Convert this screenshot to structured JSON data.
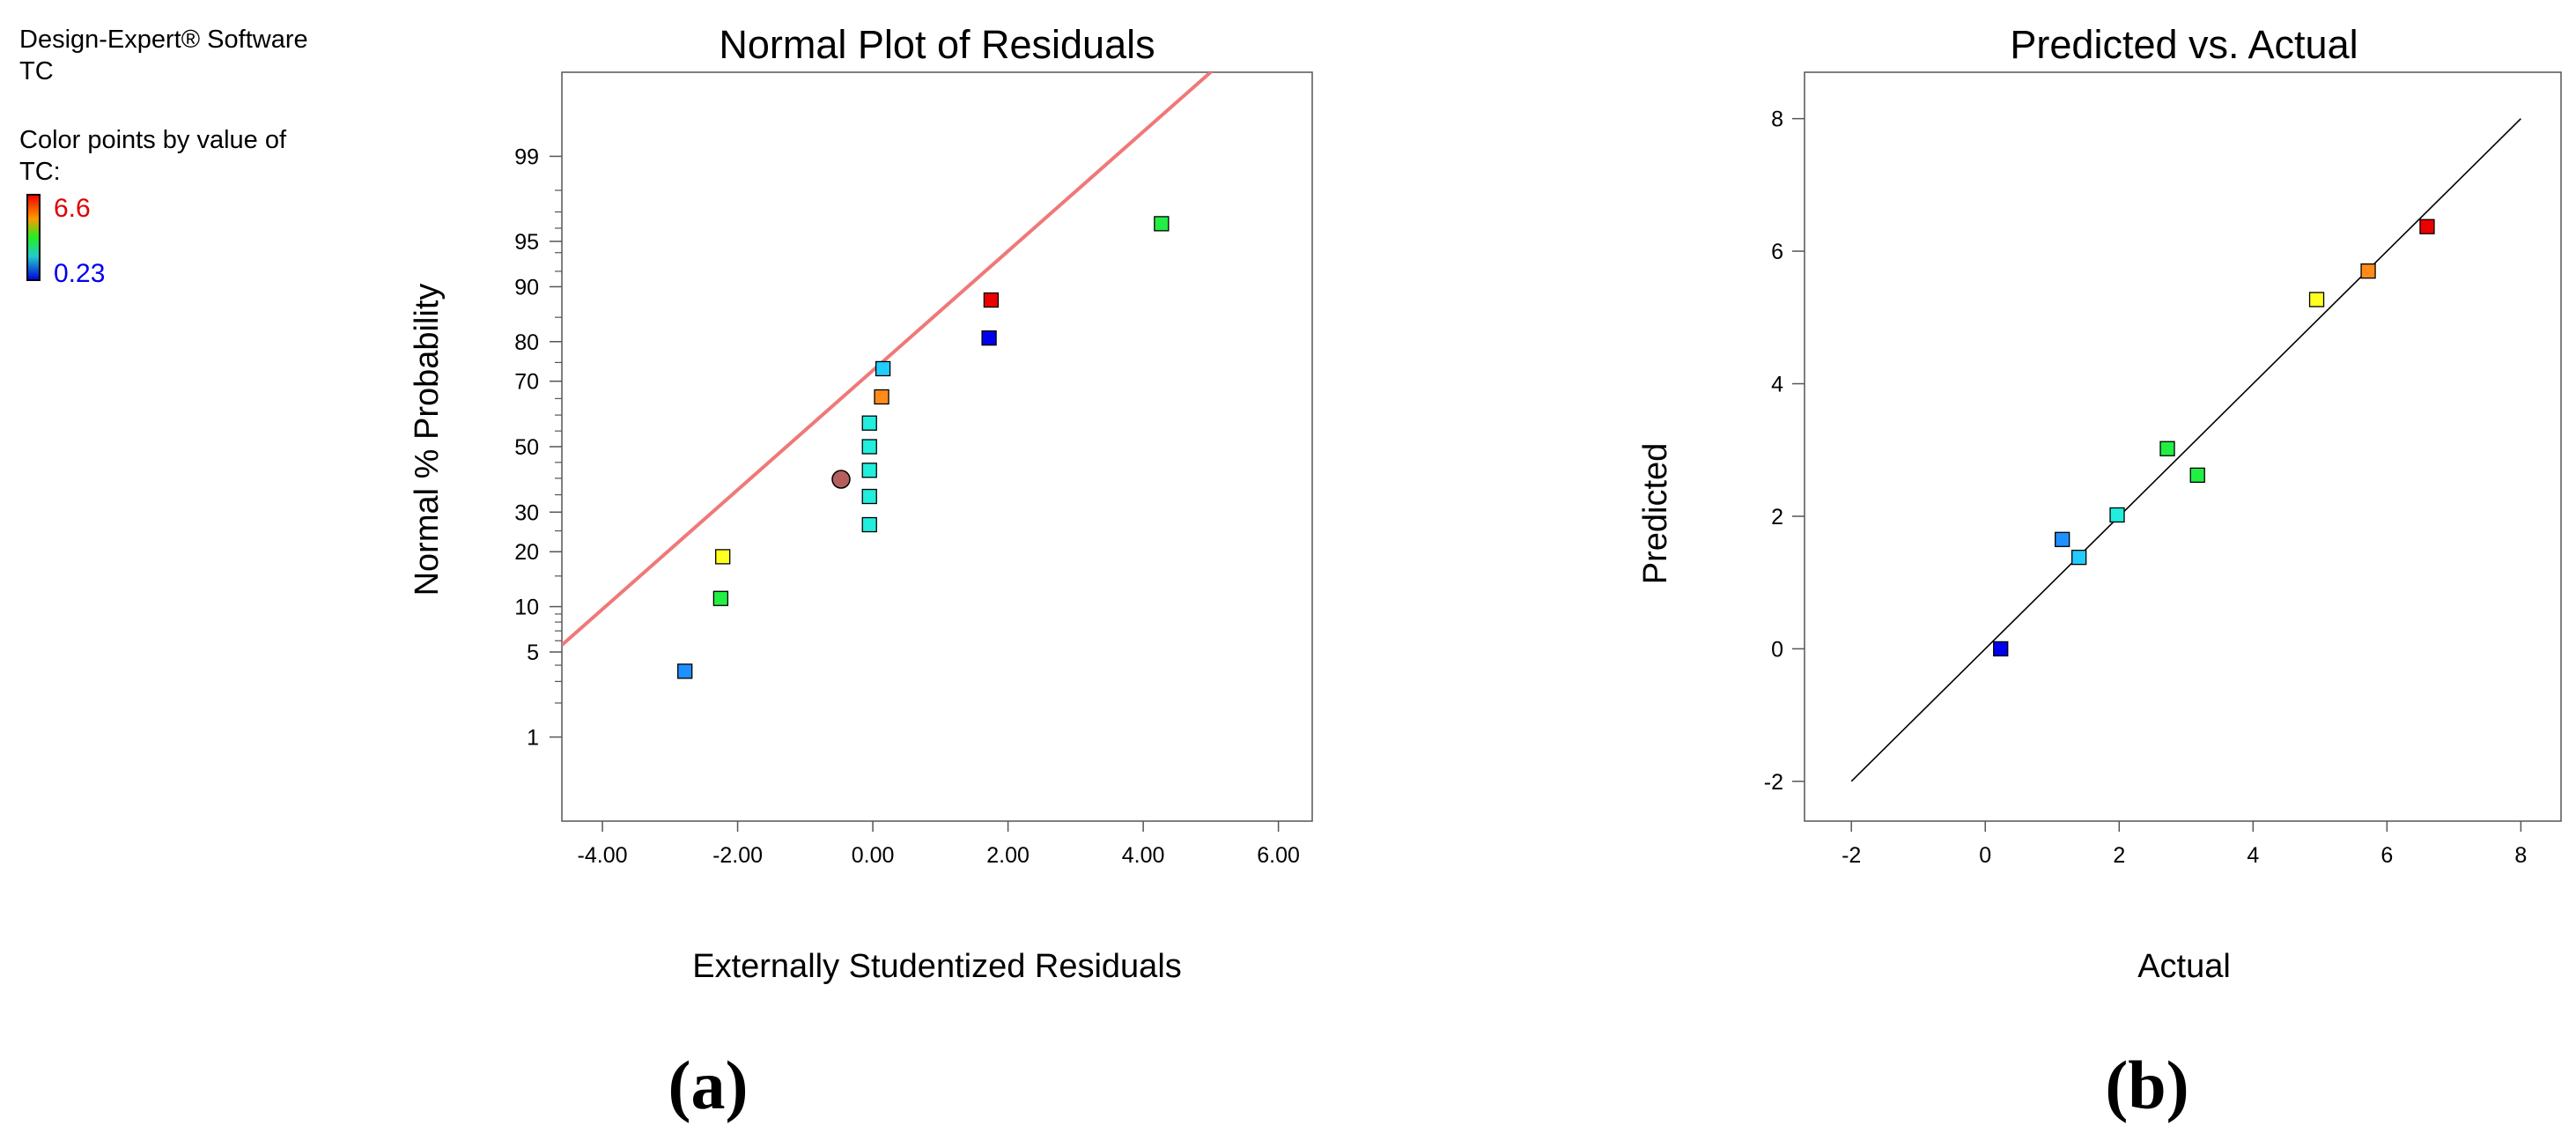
{
  "sidebar": {
    "software": "Design-Expert® Software",
    "response": "TC",
    "color_caption_line1": "Color points by value of",
    "color_caption_line2": "TC:",
    "scale_max": "6.6",
    "scale_min": "0.23",
    "scale_max_color": "#e00000",
    "scale_min_color": "#0000ee"
  },
  "panel_labels": {
    "a": "(a)",
    "b": "(b)"
  },
  "chart_data": [
    {
      "type": "scatter",
      "title": "Normal Plot of Residuals",
      "xlabel": "Externally Studentized Residuals",
      "ylabel": "Normal % Probability",
      "xlim": [
        -4.6,
        6.5
      ],
      "ylim_z": [
        -3.0,
        3.0
      ],
      "x_ticks": [
        -4,
        -2,
        0,
        2,
        4,
        6
      ],
      "x_tick_labels": [
        "-4.00",
        "-2.00",
        "0.00",
        "2.00",
        "4.00",
        "6.00"
      ],
      "y_ticks": [
        1,
        5,
        10,
        20,
        30,
        50,
        70,
        80,
        90,
        95,
        99
      ],
      "y_tick_labels": [
        "1",
        "5",
        "10",
        "20",
        "30",
        "50",
        "70",
        "80",
        "90",
        "95",
        "99"
      ],
      "y_minor_ticks": [
        2,
        3,
        4,
        6,
        7,
        8,
        9,
        15,
        25,
        35,
        40,
        45,
        55,
        60,
        65,
        75,
        85,
        92,
        94,
        96,
        97,
        98
      ],
      "reference_line": {
        "x1": -4.6,
        "p1": 5.6,
        "x2": 6.5,
        "p2": 100.5,
        "color": "#f07878"
      },
      "points": [
        {
          "x": -2.78,
          "p": 3.6,
          "color": "#1e90ff"
        },
        {
          "x": -2.25,
          "p": 11.2,
          "color": "#22ee44"
        },
        {
          "x": -2.22,
          "p": 18.9,
          "color": "#ffff22"
        },
        {
          "x": -0.47,
          "p": 39.7,
          "color": "#b45e5e",
          "shape": "circle"
        },
        {
          "x": -0.05,
          "p": 26.6,
          "color": "#22eedd"
        },
        {
          "x": -0.05,
          "p": 34.5,
          "color": "#22eedd"
        },
        {
          "x": -0.05,
          "p": 42.5,
          "color": "#22eedd"
        },
        {
          "x": -0.05,
          "p": 50.0,
          "color": "#22eedd"
        },
        {
          "x": -0.05,
          "p": 57.5,
          "color": "#22eedd"
        },
        {
          "x": 0.13,
          "p": 65.5,
          "color": "#ff8c1a"
        },
        {
          "x": 0.15,
          "p": 73.4,
          "color": "#22ccff"
        },
        {
          "x": 1.72,
          "p": 80.8,
          "color": "#0000ee"
        },
        {
          "x": 1.75,
          "p": 88.0,
          "color": "#ee0000"
        },
        {
          "x": 4.27,
          "p": 96.3,
          "color": "#22ee44"
        }
      ]
    },
    {
      "type": "scatter",
      "title": "Predicted vs. Actual",
      "xlabel": "Actual",
      "ylabel": "Predicted",
      "xlim": [
        -2.7,
        8.6
      ],
      "ylim": [
        -2.6,
        8.7
      ],
      "x_ticks": [
        -2,
        0,
        2,
        4,
        6,
        8
      ],
      "x_tick_labels": [
        "-2",
        "0",
        "2",
        "4",
        "6",
        "8"
      ],
      "y_ticks": [
        -2,
        0,
        2,
        4,
        6,
        8
      ],
      "y_tick_labels": [
        "-2",
        "0",
        "2",
        "4",
        "6",
        "8"
      ],
      "reference_line": {
        "x1": -2,
        "y1": -2,
        "x2": 8,
        "y2": 8,
        "color": "#000000"
      },
      "points": [
        {
          "x": 0.23,
          "y": 0.0,
          "color": "#0000ee"
        },
        {
          "x": 1.15,
          "y": 1.65,
          "color": "#1e90ff"
        },
        {
          "x": 1.4,
          "y": 1.38,
          "color": "#22ccff"
        },
        {
          "x": 1.97,
          "y": 2.02,
          "color": "#22eedd"
        },
        {
          "x": 2.72,
          "y": 3.02,
          "color": "#22ee44"
        },
        {
          "x": 3.17,
          "y": 2.62,
          "color": "#22ee44"
        },
        {
          "x": 4.95,
          "y": 5.27,
          "color": "#ffff22"
        },
        {
          "x": 5.72,
          "y": 5.7,
          "color": "#ff8c1a"
        },
        {
          "x": 6.6,
          "y": 6.37,
          "color": "#ee0000"
        }
      ]
    }
  ]
}
